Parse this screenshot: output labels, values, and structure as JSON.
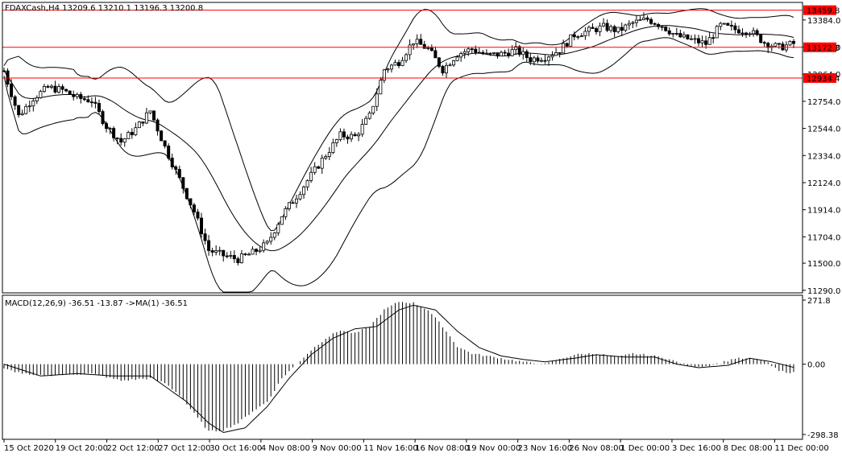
{
  "window": {
    "header": "FDAXCash,H4  13209.6 13210.1 13196.3 13200.8",
    "indicator_header": "MACD(12,26,9) -36.51 -13.87  ->MA(1) -36.51"
  },
  "colors": {
    "background": "#ffffff",
    "foreground": "#000000",
    "level_line": "#ff0000",
    "level_tag_fill": "#ff0000",
    "macd_histogram": "#000000",
    "macd_signal": "#000000"
  },
  "chart_data": [
    {
      "type": "candlestick",
      "symbol": "FDAXCash",
      "timeframe": "H4",
      "ohlc_last": [
        13209.6,
        13210.1,
        13196.3,
        13200.8
      ],
      "ylim": [
        11270,
        13520
      ],
      "y_ticks": [
        "13384.0",
        "13174.0",
        "12964.0",
        "12754.0",
        "12544.0",
        "12334.0",
        "12124.0",
        "11914.0",
        "11704.0",
        "11500.0",
        "11290.0"
      ],
      "y_tick_values": [
        13384,
        13174,
        12964,
        12754,
        12544,
        12334,
        12124,
        11914,
        11704,
        11500,
        11290
      ],
      "x_labels": [
        "15 Oct 2020",
        "19 Oct 20:00",
        "22 Oct 12:00",
        "27 Oct 12:00",
        "30 Oct 16:00",
        "4 Nov 08:00",
        "9 Nov 00:00",
        "11 Nov 16:00",
        "16 Nov 08:00",
        "19 Nov 00:00",
        "23 Nov 16:00",
        "26 Nov 08:00",
        "1 Dec 00:00",
        "3 Dec 16:00",
        "8 Dec 08:00",
        "11 Dec 00:00"
      ],
      "horizontal_levels": [
        {
          "value": 13459.8,
          "label": "13459.8"
        },
        {
          "value": 13172.3,
          "label": "13172.3"
        },
        {
          "value": 12934.4,
          "label": "12934.4"
        }
      ],
      "overlay": "Bollinger Bands",
      "close_path": [
        [
          0,
          12990
        ],
        [
          4,
          12640
        ],
        [
          8,
          12780
        ],
        [
          12,
          12860
        ],
        [
          16,
          12840
        ],
        [
          20,
          12780
        ],
        [
          24,
          12760
        ],
        [
          28,
          12560
        ],
        [
          32,
          12440
        ],
        [
          36,
          12540
        ],
        [
          40,
          12680
        ],
        [
          44,
          12400
        ],
        [
          48,
          12150
        ],
        [
          52,
          11900
        ],
        [
          56,
          11600
        ],
        [
          60,
          11560
        ],
        [
          64,
          11530
        ],
        [
          68,
          11580
        ],
        [
          72,
          11650
        ],
        [
          76,
          11870
        ],
        [
          80,
          12020
        ],
        [
          84,
          12180
        ],
        [
          88,
          12340
        ],
        [
          92,
          12490
        ],
        [
          96,
          12480
        ],
        [
          100,
          12640
        ],
        [
          104,
          13000
        ],
        [
          108,
          13060
        ],
        [
          112,
          13220
        ],
        [
          116,
          13160
        ],
        [
          120,
          13000
        ],
        [
          124,
          13120
        ],
        [
          128,
          13160
        ],
        [
          132,
          13110
        ],
        [
          136,
          13120
        ],
        [
          140,
          13150
        ],
        [
          144,
          13080
        ],
        [
          148,
          13100
        ],
        [
          152,
          13150
        ],
        [
          156,
          13270
        ],
        [
          160,
          13300
        ],
        [
          164,
          13330
        ],
        [
          168,
          13300
        ],
        [
          172,
          13360
        ],
        [
          176,
          13390
        ],
        [
          180,
          13340
        ],
        [
          184,
          13260
        ],
        [
          188,
          13230
        ],
        [
          192,
          13200
        ],
        [
          196,
          13340
        ],
        [
          200,
          13310
        ],
        [
          204,
          13300
        ],
        [
          208,
          13210
        ],
        [
          212,
          13170
        ],
        [
          216,
          13201
        ]
      ]
    },
    {
      "type": "macd",
      "name": "MACD(12,26,9)",
      "values": {
        "macd": -36.51,
        "signal": -13.87,
        "ma": -36.51
      },
      "ylim": [
        -298.38,
        271.8
      ],
      "y_ticks": [
        "271.8",
        "0.00",
        "-298.38"
      ],
      "y_tick_values": [
        271.8,
        0.0,
        -298.38
      ],
      "hist_path": [
        [
          0,
          -20
        ],
        [
          8,
          -50
        ],
        [
          16,
          -45
        ],
        [
          24,
          -40
        ],
        [
          32,
          -70
        ],
        [
          40,
          -60
        ],
        [
          44,
          -80
        ],
        [
          48,
          -130
        ],
        [
          52,
          -210
        ],
        [
          56,
          -285
        ],
        [
          60,
          -280
        ],
        [
          64,
          -250
        ],
        [
          68,
          -200
        ],
        [
          72,
          -160
        ],
        [
          76,
          -60
        ],
        [
          80,
          0
        ],
        [
          84,
          60
        ],
        [
          88,
          110
        ],
        [
          92,
          145
        ],
        [
          96,
          130
        ],
        [
          100,
          160
        ],
        [
          104,
          230
        ],
        [
          108,
          265
        ],
        [
          112,
          260
        ],
        [
          116,
          230
        ],
        [
          120,
          160
        ],
        [
          124,
          75
        ],
        [
          128,
          45
        ],
        [
          132,
          35
        ],
        [
          136,
          25
        ],
        [
          140,
          15
        ],
        [
          144,
          5
        ],
        [
          148,
          0
        ],
        [
          152,
          20
        ],
        [
          156,
          40
        ],
        [
          160,
          45
        ],
        [
          164,
          40
        ],
        [
          168,
          30
        ],
        [
          172,
          45
        ],
        [
          176,
          38
        ],
        [
          180,
          30
        ],
        [
          184,
          10
        ],
        [
          188,
          -10
        ],
        [
          192,
          -8
        ],
        [
          196,
          5
        ],
        [
          200,
          25
        ],
        [
          204,
          22
        ],
        [
          208,
          15
        ],
        [
          212,
          -30
        ],
        [
          216,
          -36.51
        ]
      ],
      "signal_path": [
        [
          0,
          0
        ],
        [
          10,
          -50
        ],
        [
          20,
          -40
        ],
        [
          30,
          -50
        ],
        [
          40,
          -50
        ],
        [
          50,
          -160
        ],
        [
          56,
          -250
        ],
        [
          60,
          -290
        ],
        [
          66,
          -270
        ],
        [
          72,
          -180
        ],
        [
          78,
          -60
        ],
        [
          84,
          40
        ],
        [
          90,
          110
        ],
        [
          96,
          150
        ],
        [
          102,
          160
        ],
        [
          108,
          230
        ],
        [
          112,
          250
        ],
        [
          118,
          230
        ],
        [
          124,
          140
        ],
        [
          130,
          70
        ],
        [
          136,
          35
        ],
        [
          142,
          20
        ],
        [
          148,
          10
        ],
        [
          156,
          25
        ],
        [
          162,
          40
        ],
        [
          170,
          30
        ],
        [
          178,
          30
        ],
        [
          184,
          0
        ],
        [
          190,
          -15
        ],
        [
          198,
          -5
        ],
        [
          204,
          25
        ],
        [
          210,
          10
        ],
        [
          216,
          -13.87
        ]
      ]
    }
  ]
}
